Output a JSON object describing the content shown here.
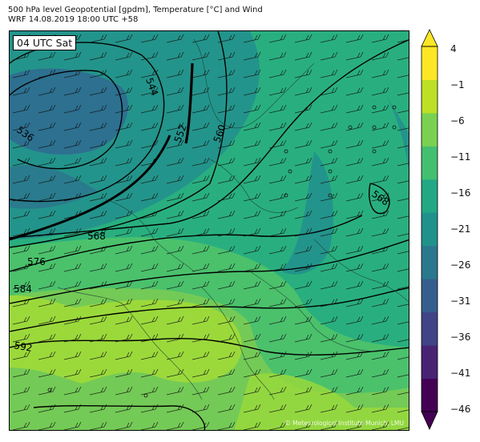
{
  "header": {
    "line1": "500 hPa level Geopotential [gpdm], Temperature [°C] and Wind",
    "line2": "WRF 14.08.2019 18:00 UTC +58"
  },
  "map": {
    "valid_label": "04 UTC Sat",
    "credit": "© Meteorological Institute Munich, LMU",
    "contour_labels": [
      "544",
      "536",
      "552",
      "560",
      "568",
      "576",
      "584",
      "592",
      "568"
    ],
    "colors": {
      "cold_core": "#2f6b90",
      "band_m21": "#23948b",
      "band_m16": "#29af7f",
      "band_m11": "#4bc16c",
      "band_m6": "#74ca56",
      "band_m1": "#9bd93b",
      "contour": "#000000"
    }
  },
  "colorbar": {
    "tick_labels": [
      "4",
      "−1",
      "−6",
      "−11",
      "−16",
      "−21",
      "−26",
      "−31",
      "−36",
      "−41",
      "−46"
    ],
    "colors": [
      "#440154",
      "#482374",
      "#404387",
      "#345e8d",
      "#2a788e",
      "#21918c",
      "#22a884",
      "#44bf70",
      "#7ad151",
      "#bddf26",
      "#fde725"
    ]
  }
}
